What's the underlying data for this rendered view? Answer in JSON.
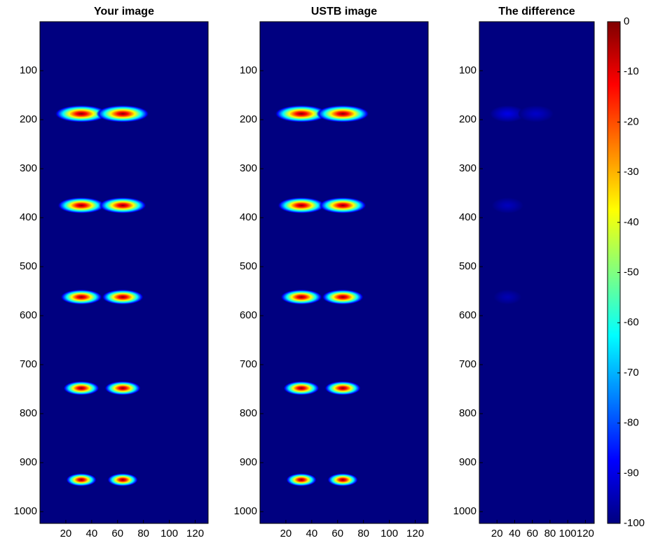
{
  "chart_data": [
    {
      "type": "heatmap",
      "title": "Your image",
      "xlim": [
        0,
        130
      ],
      "ylim": [
        0,
        1024
      ],
      "y_reversed": true,
      "xticks": [
        20,
        40,
        60,
        80,
        100,
        120
      ],
      "yticks": [
        100,
        200,
        300,
        400,
        500,
        600,
        700,
        800,
        900,
        1000
      ],
      "background": -100,
      "points": {
        "x": [
          32,
          64,
          32,
          64,
          32,
          64,
          32,
          64,
          32,
          64
        ],
        "y": [
          188,
          188,
          375,
          375,
          562,
          562,
          748,
          748,
          935,
          935
        ],
        "values": [
          0,
          0,
          0,
          0,
          0,
          0,
          0,
          0,
          0,
          0
        ]
      }
    },
    {
      "type": "heatmap",
      "title": "USTB image",
      "xlim": [
        0,
        130
      ],
      "ylim": [
        0,
        1024
      ],
      "y_reversed": true,
      "xticks": [
        20,
        40,
        60,
        80,
        100,
        120
      ],
      "yticks": [
        100,
        200,
        300,
        400,
        500,
        600,
        700,
        800,
        900,
        1000
      ],
      "background": -100,
      "points": {
        "x": [
          32,
          64,
          32,
          64,
          32,
          64,
          32,
          64,
          32,
          64
        ],
        "y": [
          188,
          188,
          375,
          375,
          562,
          562,
          748,
          748,
          935,
          935
        ],
        "values": [
          0,
          0,
          0,
          0,
          0,
          0,
          0,
          0,
          0,
          0
        ]
      }
    },
    {
      "type": "heatmap",
      "title": "The difference",
      "xlim": [
        0,
        130
      ],
      "ylim": [
        0,
        1024
      ],
      "y_reversed": true,
      "xticks": [
        20,
        40,
        60,
        80,
        100,
        120
      ],
      "yticks": [
        100,
        200,
        300,
        400,
        500,
        600,
        700,
        800,
        900,
        1000
      ],
      "background": -100,
      "points": {
        "x": [
          32,
          64,
          32,
          32
        ],
        "y": [
          188,
          188,
          375,
          562
        ],
        "values": [
          -90,
          -93,
          -94,
          -95
        ]
      }
    },
    {
      "type": "colorbar",
      "colormap": "jet",
      "clim": [
        -100,
        0
      ],
      "ticks": [
        0,
        -10,
        -20,
        -30,
        -40,
        -50,
        -60,
        -70,
        -80,
        -90,
        -100
      ]
    }
  ]
}
